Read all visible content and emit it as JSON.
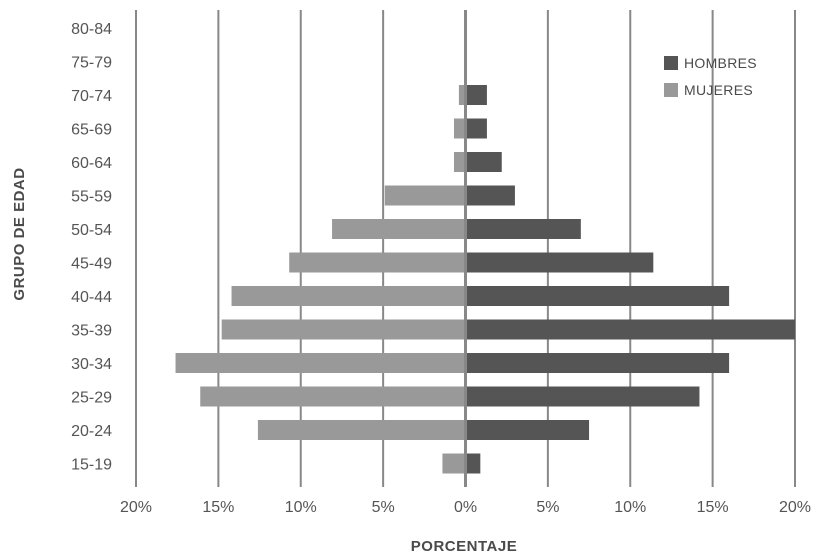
{
  "chart_data": {
    "type": "bar",
    "orientation": "horizontal",
    "subtype": "population-pyramid",
    "title": "",
    "xlabel": "PORCENTAJE",
    "ylabel": "GRUPO DE EDAD",
    "x_tick_labels": [
      "20%",
      "15%",
      "10%",
      "5%",
      "0%",
      "5%",
      "10%",
      "15%",
      "20%"
    ],
    "xlim": [
      -20,
      20
    ],
    "categories": [
      "80-84",
      "75-79",
      "70-74",
      "65-69",
      "60-64",
      "55-59",
      "50-54",
      "45-49",
      "40-44",
      "35-39",
      "30-34",
      "25-29",
      "20-24",
      "15-19"
    ],
    "series": [
      {
        "name": "HOMBRES",
        "color": "#555555",
        "values": [
          0,
          0,
          1.3,
          1.3,
          2.2,
          3.0,
          7.0,
          11.4,
          16.0,
          20.0,
          16.0,
          14.2,
          7.5,
          0.9
        ]
      },
      {
        "name": "MUJERES",
        "color": "#999999",
        "values": [
          0,
          0,
          0.4,
          0.7,
          0.7,
          4.9,
          8.1,
          10.7,
          14.2,
          14.8,
          17.6,
          16.1,
          12.6,
          1.4
        ]
      }
    ],
    "grid": true,
    "legend_position": "top-right",
    "axis_color": "#888888"
  }
}
